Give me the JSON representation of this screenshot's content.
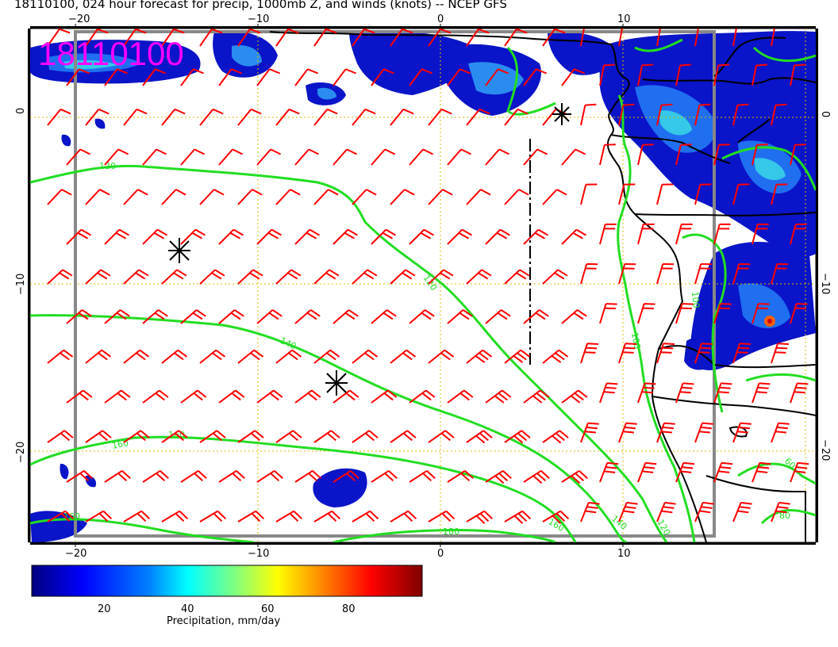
{
  "title": "18110100, 024 hour forecast for precip, 1000mb Z, and winds (knots) -- NCEP GFS",
  "stamp": "18110100",
  "axes": {
    "lon_ticks": [
      "−20",
      "−10",
      "0",
      "10"
    ],
    "lat_ticks": [
      "0",
      "−10",
      "−20"
    ]
  },
  "contour_labels": [
    "120",
    "120",
    "140",
    "160",
    "160",
    "160",
    "160",
    "140",
    "120",
    "100",
    "100",
    "60",
    "80",
    "180"
  ],
  "colorbar": {
    "ticks": [
      "20",
      "40",
      "60",
      "80"
    ],
    "label": "Precipitation, mm/day"
  },
  "colors": {
    "precip_scale": [
      "#00007f",
      "#0000ff",
      "#0080ff",
      "#00ffff",
      "#80ff80",
      "#ffff00",
      "#ff8000",
      "#ff0000",
      "#7f0000"
    ],
    "contour": "#22dd22",
    "wind_barb": "#ff0000",
    "coastline": "#000000",
    "stamp": "#ff00ff",
    "grid": "#ddbb00"
  },
  "markers": [
    {
      "name": "storm-center-1",
      "lon": -14.5,
      "lat": -8
    },
    {
      "name": "storm-center-2",
      "lon": -5.8,
      "lat": -16
    }
  ]
}
